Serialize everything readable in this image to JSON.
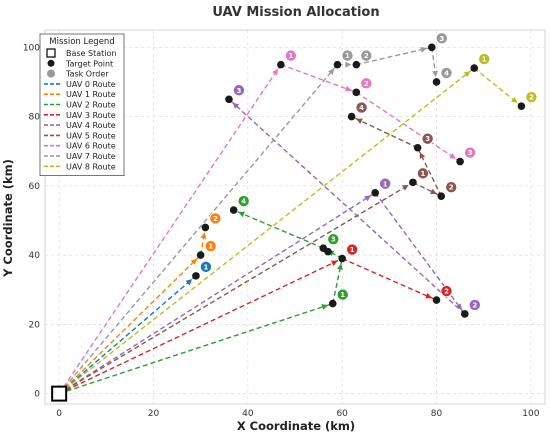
{
  "chart_data": {
    "type": "scatter",
    "title": "UAV Mission Allocation",
    "xlabel": "X Coordinate (km)",
    "ylabel": "Y Coordinate (km)",
    "xlim": [
      -3,
      103
    ],
    "ylim": [
      -3,
      105
    ],
    "xticks": [
      0,
      20,
      40,
      60,
      80,
      100
    ],
    "yticks": [
      0,
      20,
      40,
      60,
      80,
      100
    ],
    "grid": true,
    "legend_position": "top-left",
    "legend": {
      "title": "Mission Legend",
      "base_label": "Base Station",
      "target_label": "Target Point",
      "order_label": "Task Order"
    },
    "base_station": {
      "x": 0,
      "y": 0
    },
    "targets": [
      {
        "x": 29,
        "y": 34
      },
      {
        "x": 31,
        "y": 48
      },
      {
        "x": 30,
        "y": 40
      },
      {
        "x": 37,
        "y": 53
      },
      {
        "x": 57,
        "y": 41
      },
      {
        "x": 60,
        "y": 39
      },
      {
        "x": 58,
        "y": 26
      },
      {
        "x": 80,
        "y": 27
      },
      {
        "x": 86,
        "y": 23
      },
      {
        "x": 67,
        "y": 58
      },
      {
        "x": 36,
        "y": 85
      },
      {
        "x": 47,
        "y": 95
      },
      {
        "x": 63,
        "y": 87
      },
      {
        "x": 85,
        "y": 67
      },
      {
        "x": 59,
        "y": 95
      },
      {
        "x": 63,
        "y": 95
      },
      {
        "x": 79,
        "y": 100
      },
      {
        "x": 80,
        "y": 90
      },
      {
        "x": 88,
        "y": 94
      },
      {
        "x": 98,
        "y": 83
      },
      {
        "x": 62,
        "y": 80
      },
      {
        "x": 76,
        "y": 71
      },
      {
        "x": 75,
        "y": 61
      },
      {
        "x": 81,
        "y": 57
      },
      {
        "x": 56,
        "y": 42
      }
    ],
    "series": [
      {
        "name": "UAV 0 Route",
        "color": "#1f77b4",
        "points": [
          {
            "x": 0,
            "y": 0,
            "order": null
          },
          {
            "x": 29,
            "y": 34,
            "order": 1
          }
        ]
      },
      {
        "name": "UAV 1 Route",
        "color": "#ff7f0e",
        "points": [
          {
            "x": 0,
            "y": 0,
            "order": null
          },
          {
            "x": 30,
            "y": 40,
            "order": 1
          },
          {
            "x": 31,
            "y": 48,
            "order": 2
          }
        ]
      },
      {
        "name": "UAV 2 Route",
        "color": "#2ca02c",
        "points": [
          {
            "x": 0,
            "y": 0,
            "order": null
          },
          {
            "x": 58,
            "y": 26,
            "order": 1
          },
          {
            "x": 60,
            "y": 39,
            "order": 2
          },
          {
            "x": 56,
            "y": 42,
            "order": 3
          },
          {
            "x": 37,
            "y": 53,
            "order": 4
          }
        ]
      },
      {
        "name": "UAV 3 Route",
        "color": "#d62728",
        "points": [
          {
            "x": 0,
            "y": 0,
            "order": null
          },
          {
            "x": 60,
            "y": 39,
            "order": 1
          },
          {
            "x": 80,
            "y": 27,
            "order": 2
          }
        ]
      },
      {
        "name": "UAV 4 Route",
        "color": "#9467bd",
        "points": [
          {
            "x": 0,
            "y": 0,
            "order": null
          },
          {
            "x": 67,
            "y": 58,
            "order": 1
          },
          {
            "x": 86,
            "y": 23,
            "order": 2
          },
          {
            "x": 36,
            "y": 85,
            "order": 3
          }
        ]
      },
      {
        "name": "UAV 5 Route",
        "color": "#8c564b",
        "points": [
          {
            "x": 0,
            "y": 0,
            "order": null
          },
          {
            "x": 75,
            "y": 61,
            "order": 1
          },
          {
            "x": 81,
            "y": 57,
            "order": 2
          },
          {
            "x": 76,
            "y": 71,
            "order": 3
          },
          {
            "x": 62,
            "y": 80,
            "order": 4
          }
        ]
      },
      {
        "name": "UAV 6 Route",
        "color": "#e377c2",
        "points": [
          {
            "x": 0,
            "y": 0,
            "order": null
          },
          {
            "x": 47,
            "y": 95,
            "order": 1
          },
          {
            "x": 63,
            "y": 87,
            "order": 2
          },
          {
            "x": 85,
            "y": 67,
            "order": 3
          }
        ]
      },
      {
        "name": "UAV 7 Route",
        "color": "#999999",
        "points": [
          {
            "x": 0,
            "y": 0,
            "order": null
          },
          {
            "x": 59,
            "y": 95,
            "order": 1
          },
          {
            "x": 63,
            "y": 95,
            "order": 2
          },
          {
            "x": 79,
            "y": 100,
            "order": 3
          },
          {
            "x": 80,
            "y": 90,
            "order": 4
          }
        ]
      },
      {
        "name": "UAV 8 Route",
        "color": "#bcbd22",
        "points": [
          {
            "x": 0,
            "y": 0,
            "order": null
          },
          {
            "x": 88,
            "y": 94,
            "order": 1
          },
          {
            "x": 98,
            "y": 83,
            "order": 2
          }
        ]
      }
    ]
  }
}
